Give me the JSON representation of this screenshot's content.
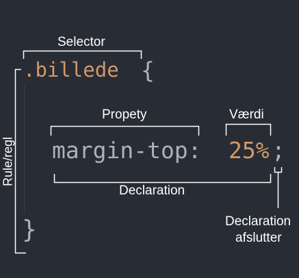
{
  "labels": {
    "selector": "Selector",
    "property": "Propety",
    "value": "Værdi",
    "declaration": "Declaration",
    "declaration_end_line1": "Declaration",
    "declaration_end_line2": "afslutter",
    "rule": "Rule/regl"
  },
  "code": {
    "selector": ".billede",
    "open_brace": "{",
    "property": "margin-top:",
    "value": "25%",
    "semicolon": ";",
    "close_brace": "}"
  },
  "colors": {
    "background": "#282c34",
    "code_default": "#abb2bf",
    "code_accent": "#d19a66",
    "annotation": "#ffffff"
  }
}
